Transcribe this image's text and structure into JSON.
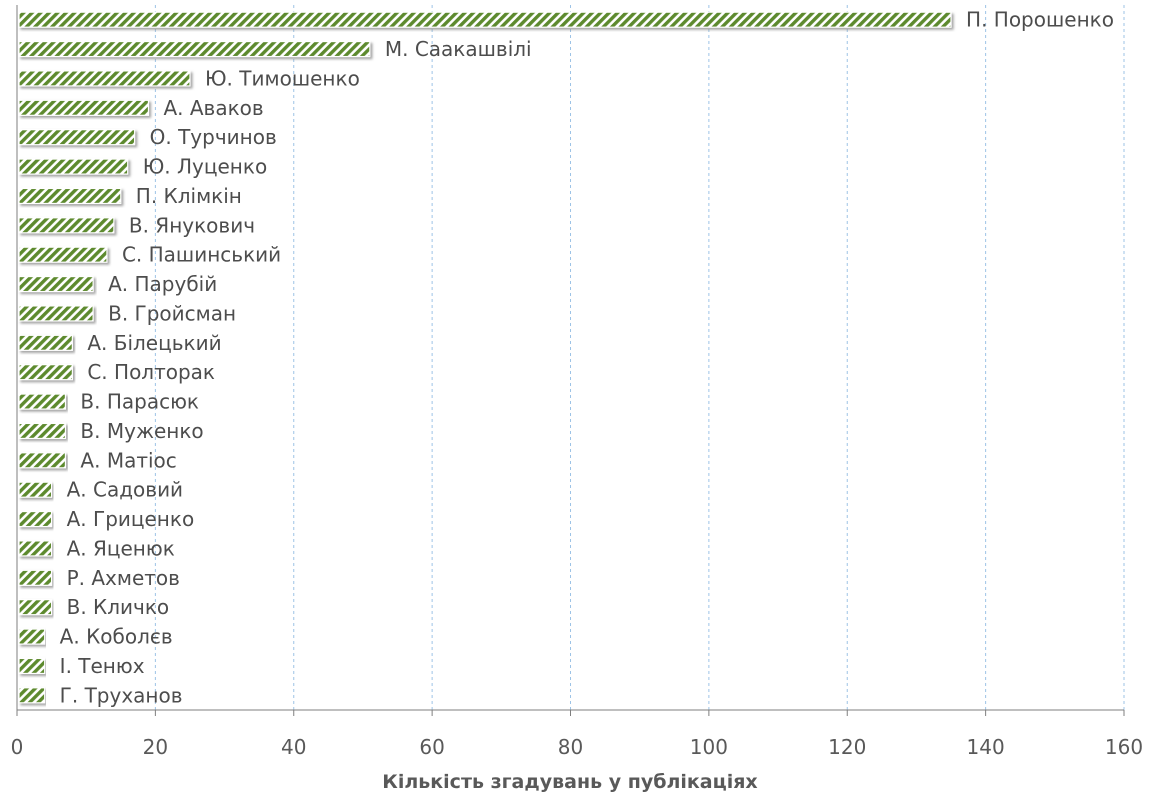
{
  "chart_data": {
    "type": "bar",
    "orientation": "horizontal",
    "title": "",
    "xlabel": "Кількість згадувань у публікаціях",
    "ylabel": "",
    "xlim": [
      0,
      160
    ],
    "xticks": [
      0,
      20,
      40,
      60,
      80,
      100,
      120,
      140,
      160
    ],
    "grid": true,
    "legend": "none",
    "bar_color": "#5d8a2e",
    "bar_pattern": "diagonal-hatch",
    "categories": [
      "П. Порошенко",
      "М. Саакашвілі",
      "Ю. Тимошенко",
      "А. Аваков",
      "О. Турчинов",
      "Ю. Луценко",
      "П. Клімкін",
      "В. Янукович",
      "С. Пашинський",
      "А. Парубій",
      "В. Гройсман",
      "А. Білецький",
      "С. Полторак",
      "В. Парасюк",
      "В. Муженко",
      "А. Матіос",
      "А. Садовий",
      "А. Гриценко",
      "А. Яценюк",
      "Р. Ахметов",
      "В. Кличко",
      "А. Коболєв",
      "І. Тенюх",
      "Г. Труханов"
    ],
    "values": [
      135,
      51,
      25,
      19,
      17,
      16,
      15,
      14,
      13,
      11,
      11,
      8,
      8,
      7,
      7,
      7,
      5,
      5,
      5,
      5,
      5,
      4,
      4,
      4
    ]
  }
}
